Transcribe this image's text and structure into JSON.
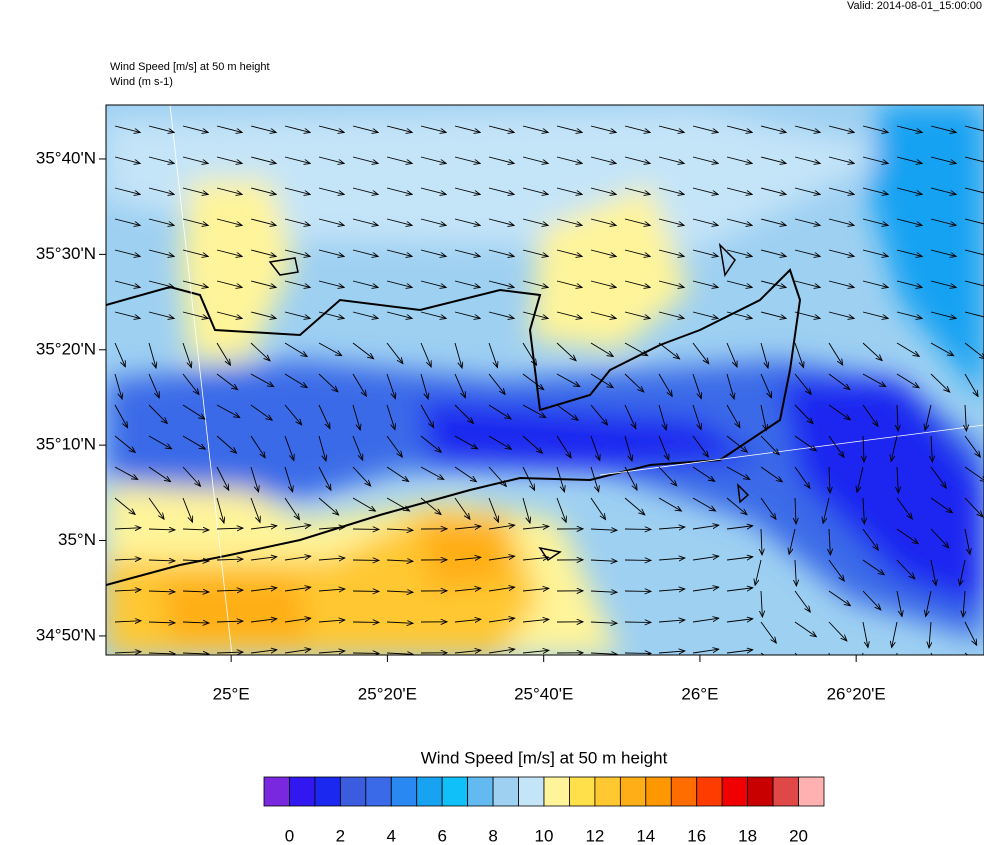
{
  "header": {
    "valid": "Valid: 2014-08-01_15:00:00",
    "field_title": "Wind Speed [m/s] at 50 m height",
    "vector_title": "Wind   (m s-1)"
  },
  "map": {
    "xlim": [
      24.733,
      26.606
    ],
    "ylim": [
      34.8,
      35.761
    ],
    "yticks": [
      {
        "value": 35.6667,
        "label": "35°40'N"
      },
      {
        "value": 35.5,
        "label": "35°30'N"
      },
      {
        "value": 35.3333,
        "label": "35°20'N"
      },
      {
        "value": 35.1667,
        "label": "35°10'N"
      },
      {
        "value": 35,
        "label": "35°N"
      },
      {
        "value": 34.8333,
        "label": "34°50'N"
      }
    ],
    "xticks": [
      {
        "value": 25,
        "label": "25°E"
      },
      {
        "value": 25.3333,
        "label": "25°20'E"
      },
      {
        "value": 25.6667,
        "label": "25°40'E"
      },
      {
        "value": 26,
        "label": "26°E"
      },
      {
        "value": 26.3333,
        "label": "26°20'E"
      }
    ]
  },
  "colorbar": {
    "title": "Wind Speed [m/s] at 50 m height",
    "lim": [
      -1,
      21
    ],
    "colors": [
      "#7a28e0",
      "#3218f0",
      "#1a28f0",
      "#3c5ce0",
      "#3a6ae8",
      "#2a88f2",
      "#18a2f2",
      "#10c0f8",
      "#62baf0",
      "#9ed0f2",
      "#c4e4f8",
      "#fff49a",
      "#ffe04a",
      "#ffc830",
      "#ffae18",
      "#ff9800",
      "#ff6c00",
      "#ff3c00",
      "#f00000",
      "#c80000",
      "#e04848",
      "#ffb0b0"
    ],
    "ticks": [
      0,
      2,
      4,
      6,
      8,
      10,
      12,
      14,
      16,
      18,
      20
    ]
  }
}
